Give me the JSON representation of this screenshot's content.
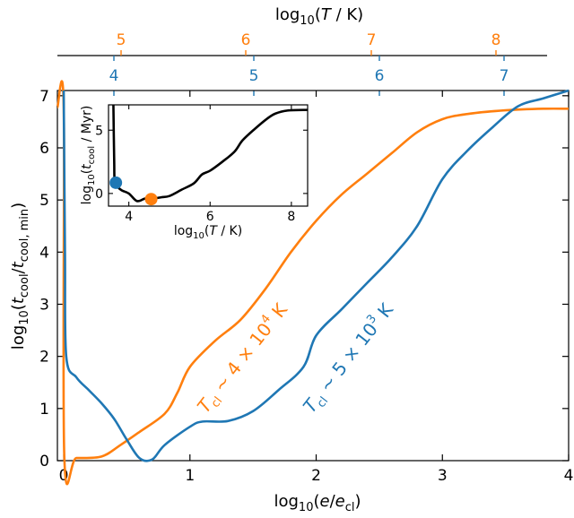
{
  "colors": {
    "orange": "#ff7f0e",
    "blue": "#1f77b4",
    "axis": "#000000",
    "inset_line": "#000000"
  },
  "chart_data": [
    {
      "type": "line",
      "panel": "main",
      "xlabel": "log10(e/e_cl)",
      "ylabel": "log10(t_cool/t_cool,min)",
      "xlim": [
        -0.05,
        4.0
      ],
      "ylim": [
        0,
        7.1
      ],
      "x_ticks": [
        0,
        1,
        2,
        3,
        4
      ],
      "y_ticks": [
        0,
        1,
        2,
        3,
        4,
        5,
        6,
        7
      ],
      "grid": false,
      "series": [
        {
          "name": "T_cl ~ 4×10^4 K",
          "color": "orange",
          "points": [
            [
              -0.05,
              6.78
            ],
            [
              0.0,
              6.78
            ],
            [
              0.005,
              0.05
            ],
            [
              0.1,
              0.05
            ],
            [
              0.3,
              0.08
            ],
            [
              0.45,
              0.3
            ],
            [
              0.6,
              0.55
            ],
            [
              0.8,
              0.9
            ],
            [
              0.9,
              1.3
            ],
            [
              1.0,
              1.8
            ],
            [
              1.2,
              2.3
            ],
            [
              1.4,
              2.7
            ],
            [
              1.6,
              3.3
            ],
            [
              1.8,
              4.0
            ],
            [
              2.0,
              4.6
            ],
            [
              2.2,
              5.1
            ],
            [
              2.4,
              5.5
            ],
            [
              2.6,
              5.9
            ],
            [
              2.8,
              6.3
            ],
            [
              3.0,
              6.55
            ],
            [
              3.2,
              6.65
            ],
            [
              3.5,
              6.72
            ],
            [
              3.8,
              6.75
            ],
            [
              4.0,
              6.75
            ]
          ]
        },
        {
          "name": "T_cl ~ 5×10^3 K",
          "color": "blue",
          "points": [
            [
              0.0,
              7.1
            ],
            [
              0.01,
              4.0
            ],
            [
              0.02,
              2.0
            ],
            [
              0.1,
              1.6
            ],
            [
              0.2,
              1.35
            ],
            [
              0.3,
              1.1
            ],
            [
              0.4,
              0.8
            ],
            [
              0.5,
              0.4
            ],
            [
              0.6,
              0.05
            ],
            [
              0.7,
              0.02
            ],
            [
              0.8,
              0.3
            ],
            [
              1.0,
              0.65
            ],
            [
              1.1,
              0.75
            ],
            [
              1.3,
              0.76
            ],
            [
              1.5,
              0.95
            ],
            [
              1.7,
              1.35
            ],
            [
              1.9,
              1.8
            ],
            [
              2.0,
              2.4
            ],
            [
              2.2,
              2.9
            ],
            [
              2.4,
              3.4
            ],
            [
              2.6,
              3.9
            ],
            [
              2.8,
              4.5
            ],
            [
              3.0,
              5.4
            ],
            [
              3.2,
              5.95
            ],
            [
              3.4,
              6.4
            ],
            [
              3.6,
              6.8
            ],
            [
              3.8,
              6.95
            ],
            [
              4.0,
              7.1
            ]
          ]
        }
      ],
      "annotations": [
        {
          "text": "T_cl ~ 4×10^4 K",
          "color": "orange"
        },
        {
          "text": "T_cl ~ 5×10^3 K",
          "color": "blue"
        }
      ]
    },
    {
      "type": "line",
      "panel": "inset",
      "xlabel": "log10(T/K)",
      "ylabel": "log10(t_cool/Myr)",
      "xlim": [
        3.5,
        8.4
      ],
      "ylim": [
        -1.0,
        7.0
      ],
      "x_ticks": [
        4,
        6,
        8
      ],
      "y_ticks": [
        0,
        5
      ],
      "series": [
        {
          "name": "",
          "color": "inset_line",
          "points": [
            [
              3.62,
              7.0
            ],
            [
              3.64,
              2.5
            ],
            [
              3.66,
              0.9
            ],
            [
              3.8,
              0.3
            ],
            [
              4.0,
              0.0
            ],
            [
              4.2,
              -0.6
            ],
            [
              4.4,
              -0.4
            ],
            [
              4.6,
              -0.4
            ],
            [
              4.8,
              -0.3
            ],
            [
              5.0,
              -0.2
            ],
            [
              5.3,
              0.3
            ],
            [
              5.6,
              0.8
            ],
            [
              5.8,
              1.5
            ],
            [
              6.0,
              1.8
            ],
            [
              6.3,
              2.5
            ],
            [
              6.6,
              3.3
            ],
            [
              6.8,
              4.2
            ],
            [
              7.1,
              5.1
            ],
            [
              7.4,
              5.9
            ],
            [
              7.6,
              6.3
            ],
            [
              7.9,
              6.55
            ],
            [
              8.4,
              6.6
            ]
          ]
        }
      ],
      "markers": [
        {
          "x": 3.68,
          "y": 0.85,
          "color": "blue"
        },
        {
          "x": 4.55,
          "y": -0.45,
          "color": "orange"
        }
      ]
    }
  ],
  "top_axes": {
    "title": "log10(T/K)",
    "orange_ticks": [
      "5",
      "6",
      "7",
      "8"
    ],
    "blue_ticks": [
      "4",
      "5",
      "6",
      "7"
    ]
  }
}
